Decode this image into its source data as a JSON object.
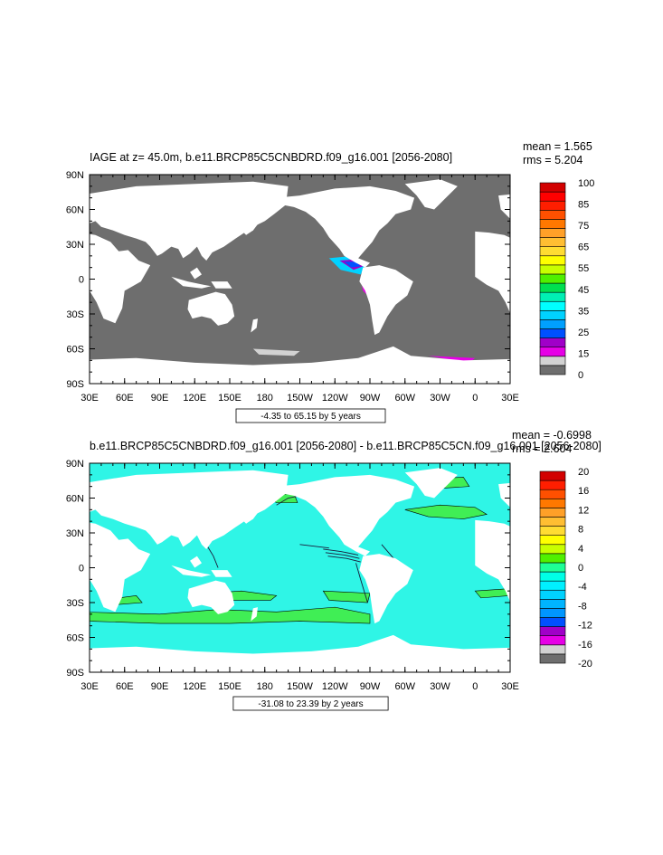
{
  "colors": {
    "land": "#ffffff",
    "missing": "#6e6e6e",
    "frame": "#000000"
  },
  "chart_data": [
    {
      "type": "heatmap",
      "title": "IAGE at z=  45.0m, b.e11.BRCP85C5CNBDRD.f09_g16.001 [2056-2080]",
      "stats": {
        "mean": "mean = 1.565",
        "rms": "rms = 5.204"
      },
      "contour_info": "-4.35 to 65.15 by 5 years",
      "xlabel": "",
      "ylabel": "",
      "x_ticks": [
        "30E",
        "60E",
        "90E",
        "120E",
        "150E",
        "180",
        "150W",
        "120W",
        "90W",
        "60W",
        "30W",
        "0",
        "30E"
      ],
      "y_ticks": [
        "90N",
        "60N",
        "30N",
        "0",
        "30S",
        "60S",
        "90S"
      ],
      "xlim": [
        30,
        390
      ],
      "ylim": [
        -90,
        90
      ],
      "colorbar": {
        "labels": [
          "0",
          "15",
          "25",
          "35",
          "45",
          "55",
          "65",
          "75",
          "85",
          "100"
        ],
        "colors": [
          "#6e6e6e",
          "#d2d2d2",
          "#e600e6",
          "#a000c8",
          "#0050ff",
          "#00a0ff",
          "#00d2ff",
          "#00ffff",
          "#00f0b4",
          "#00e050",
          "#50f000",
          "#c8ff00",
          "#ffff00",
          "#ffdc32",
          "#ffbe32",
          "#ffa028",
          "#ff7800",
          "#ff5000",
          "#ff1e00",
          "#ff0000",
          "#d20000"
        ]
      },
      "ocean_value_color": "#6e6e6e"
    },
    {
      "type": "heatmap",
      "title": "b.e11.BRCP85C5CNBDRD.f09_g16.001 [2056-2080] - b.e11.BRCP85C5CN.f09_g16.001 [2056-2080]",
      "stats": {
        "mean": "mean = -0.6998",
        "rms": "rms = 2.604"
      },
      "contour_info": "-31.08 to 23.39 by 2 years",
      "xlabel": "",
      "ylabel": "",
      "x_ticks": [
        "30E",
        "60E",
        "90E",
        "120E",
        "150E",
        "180",
        "150W",
        "120W",
        "90W",
        "60W",
        "30W",
        "0",
        "30E"
      ],
      "y_ticks": [
        "90N",
        "60N",
        "30N",
        "0",
        "30S",
        "60S",
        "90S"
      ],
      "xlim": [
        30,
        390
      ],
      "ylim": [
        -90,
        90
      ],
      "colorbar": {
        "labels": [
          "-20",
          "-16",
          "-12",
          "-8",
          "-4",
          "0",
          "4",
          "8",
          "12",
          "16",
          "20"
        ],
        "colors": [
          "#6e6e6e",
          "#d2d2d2",
          "#e600e6",
          "#a000c8",
          "#0050ff",
          "#0096ff",
          "#00b4ff",
          "#00d2ff",
          "#00f0ff",
          "#00ffe6",
          "#1eff96",
          "#50f000",
          "#c8ff00",
          "#ffff00",
          "#ffdc32",
          "#ffbe32",
          "#ffa028",
          "#ff7800",
          "#ff5000",
          "#ff1e00",
          "#d20000"
        ]
      },
      "ocean_value_color": "#2ff5e6",
      "positive_patch_color": "#40ee55"
    }
  ]
}
